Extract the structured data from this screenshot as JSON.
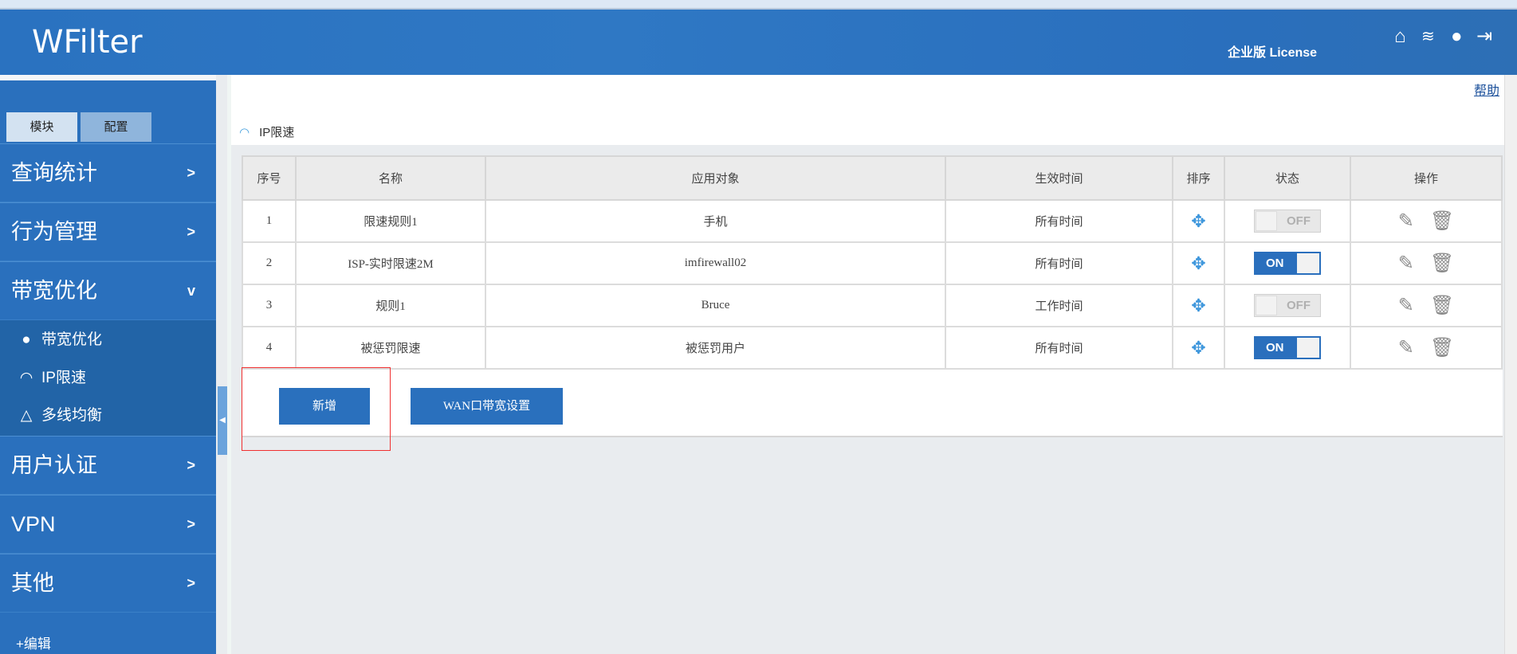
{
  "header": {
    "logo": "WFilter",
    "license": "企业版 License",
    "icons": [
      "home-icon",
      "wifi-icon",
      "user-icon",
      "logout-icon"
    ]
  },
  "sidebar": {
    "tabs": [
      "模块",
      "配置"
    ],
    "menus": [
      {
        "label": "查询统计",
        "chev": ">"
      },
      {
        "label": "行为管理",
        "chev": ">"
      },
      {
        "label": "带宽优化",
        "chev": "v"
      },
      {
        "label": "用户认证",
        "chev": ">"
      },
      {
        "label": "VPN",
        "chev": ">"
      },
      {
        "label": "其他",
        "chev": ">"
      }
    ],
    "submenu": [
      {
        "label": "带宽优化",
        "icon": "globe-icon"
      },
      {
        "label": "IP限速",
        "icon": "speedometer-icon"
      },
      {
        "label": "多线均衡",
        "icon": "network-icon"
      }
    ],
    "edit": "+编辑"
  },
  "main": {
    "help": "帮助",
    "title": "IP限速",
    "columns": [
      "序号",
      "名称",
      "应用对象",
      "生效时间",
      "排序",
      "状态",
      "操作"
    ],
    "rows": [
      {
        "no": "1",
        "name": "限速规则1",
        "target": "手机",
        "time": "所有时间",
        "status": "OFF"
      },
      {
        "no": "2",
        "name": "ISP-实时限速2M",
        "target": "imfirewall02",
        "time": "所有时间",
        "status": "ON"
      },
      {
        "no": "3",
        "name": "规则1",
        "target": "Bruce",
        "time": "工作时间",
        "status": "OFF"
      },
      {
        "no": "4",
        "name": "被惩罚限速",
        "target": "被惩罚用户",
        "time": "所有时间",
        "status": "ON"
      }
    ],
    "add_button": "新增",
    "wan_button": "WAN口带宽设置"
  },
  "colors": {
    "brand": "#2a70bd",
    "highlight": "#f03030"
  }
}
